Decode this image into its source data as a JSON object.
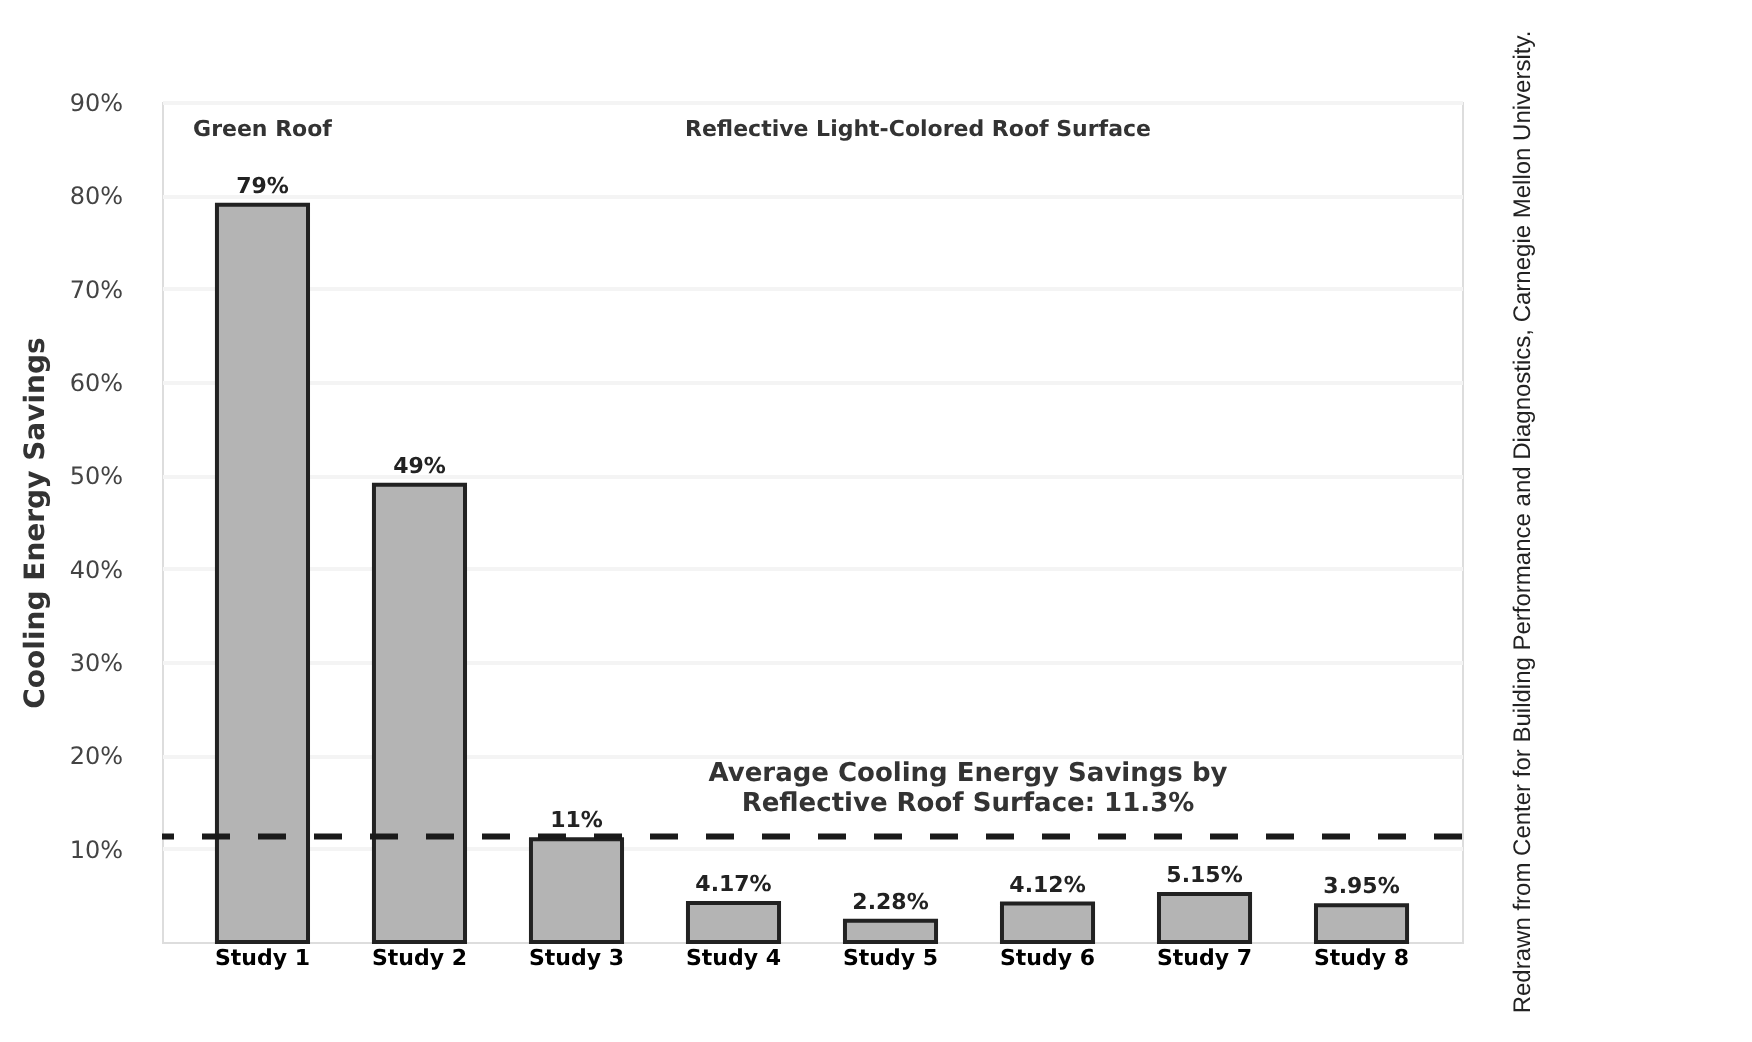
{
  "chart_data": {
    "type": "bar",
    "ylabel": "Cooling Energy Savings",
    "categories": [
      "Study 1",
      "Study 2",
      "Study 3",
      "Study 4",
      "Study 5",
      "Study 6",
      "Study 7",
      "Study 8"
    ],
    "values": [
      79,
      49,
      11,
      4.17,
      2.28,
      4.12,
      5.15,
      3.95
    ],
    "value_labels": [
      "79%",
      "49%",
      "11%",
      "4.17%",
      "2.28%",
      "4.12%",
      "5.15%",
      "3.95%"
    ],
    "color": "#b4b4b4",
    "ylim": [
      0,
      90
    ],
    "yticks": [
      {
        "value": 10,
        "label": "10%"
      },
      {
        "value": 20,
        "label": "20%"
      },
      {
        "value": 30,
        "label": "30%"
      },
      {
        "value": 40,
        "label": "40%"
      },
      {
        "value": 50,
        "label": "50%"
      },
      {
        "value": 60,
        "label": "60%"
      },
      {
        "value": 70,
        "label": "70%"
      },
      {
        "value": 80,
        "label": "80%"
      },
      {
        "value": 90,
        "label": "90%"
      }
    ],
    "grid": "y",
    "ref_lines": [
      {
        "axis": "y",
        "value": 11.3,
        "label": "Average Cooling Energy Savings by\nReflective Roof Surface: 11.3%",
        "line_style": "dashed",
        "color": "#1a1a1a"
      }
    ],
    "annotations": [
      "Green Roof",
      "Reflective Light-Colored Roof Surface",
      "Redrawn from Center for Building Performance and Diagnostics, Carnegie Mellon University."
    ]
  }
}
